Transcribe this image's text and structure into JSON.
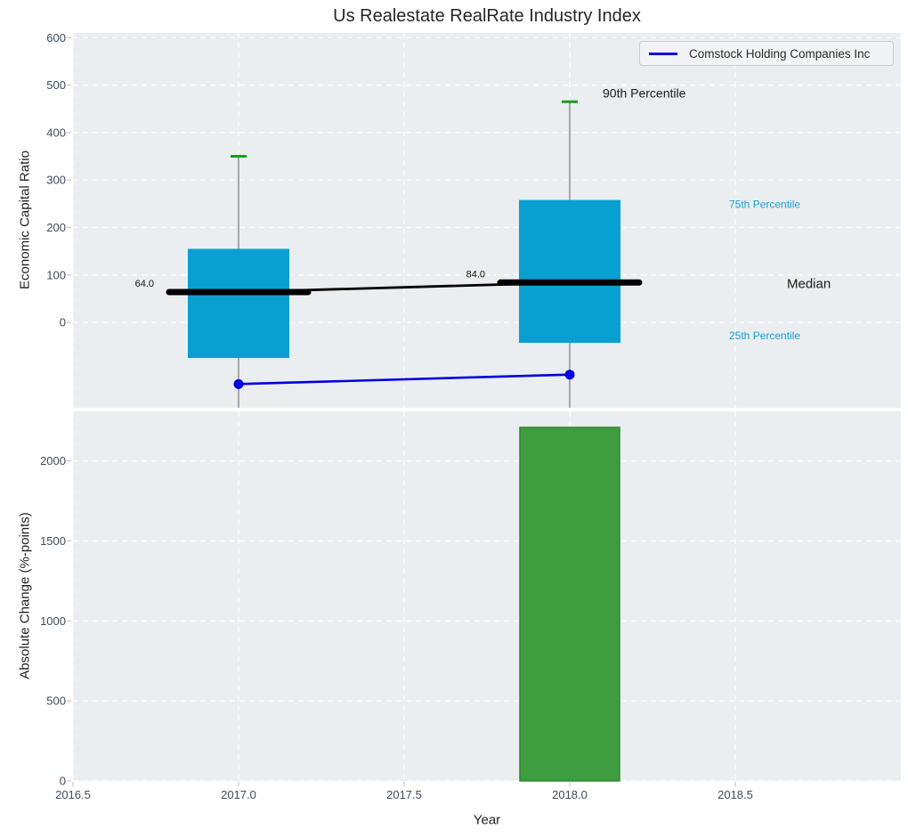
{
  "title": "Us Realestate RealRate Industry Index",
  "xlabel": "Year",
  "legend": {
    "label": "Comstock Holding Companies Inc",
    "line_color": "#0000e0"
  },
  "colors": {
    "figure_bg": "#ffffff",
    "axes_bg": "#eaeef0",
    "grid": "#ffffff",
    "tick_label": "#3d4c5e",
    "text": "#222222"
  },
  "xaxis": {
    "xlim": [
      2016.5,
      2019.0
    ],
    "ticks": [
      2016.5,
      2017.0,
      2017.5,
      2018.0,
      2018.5
    ],
    "tick_labels": [
      "2016.5",
      "2017.0",
      "2017.5",
      "2018.0",
      "2018.5"
    ]
  },
  "chart_data": [
    {
      "type": "boxplot",
      "panel": "top",
      "ylabel": "Economic Capital Ratio",
      "ylim": [
        -180,
        610
      ],
      "yticks": [
        0,
        100,
        200,
        300,
        400,
        500,
        600
      ],
      "grid": true,
      "box_color": "#089fd1",
      "cap_color": "#1d9b1d",
      "whisker_color": "#787878",
      "median_color": "#000000",
      "boxes": [
        {
          "x": 2017,
          "p90": 350,
          "p75": 155,
          "median": 64.0,
          "p25": -75,
          "median_label": "64.0"
        },
        {
          "x": 2018,
          "p90": 465,
          "p75": 258,
          "median": 84.0,
          "p25": -43,
          "median_label": "84.0"
        }
      ],
      "series": [
        {
          "name": "Comstock Holding Companies Inc",
          "color": "#0000e0",
          "x": [
            2017,
            2018
          ],
          "values": [
            -130,
            -110
          ]
        }
      ],
      "labels": {
        "p90": {
          "text": "90th Percentile",
          "color": "#1a1a1a"
        },
        "p75": {
          "text": "75th Percentile",
          "color": "#16a0d4"
        },
        "median": {
          "text": "Median",
          "color": "#1a1a1a"
        },
        "p25": {
          "text": "25th Percentile",
          "color": "#16a0d4"
        }
      }
    },
    {
      "type": "bar",
      "panel": "bottom",
      "ylabel": "Absolute Change (%-points)",
      "ylim": [
        0,
        2310
      ],
      "yticks": [
        0,
        500,
        1000,
        1500,
        2000
      ],
      "grid": true,
      "bar_color": "#3e9d3e",
      "bar_edge_color": "#2f8a2f",
      "bars": [
        {
          "x": 2018,
          "value": 2210
        }
      ]
    }
  ]
}
